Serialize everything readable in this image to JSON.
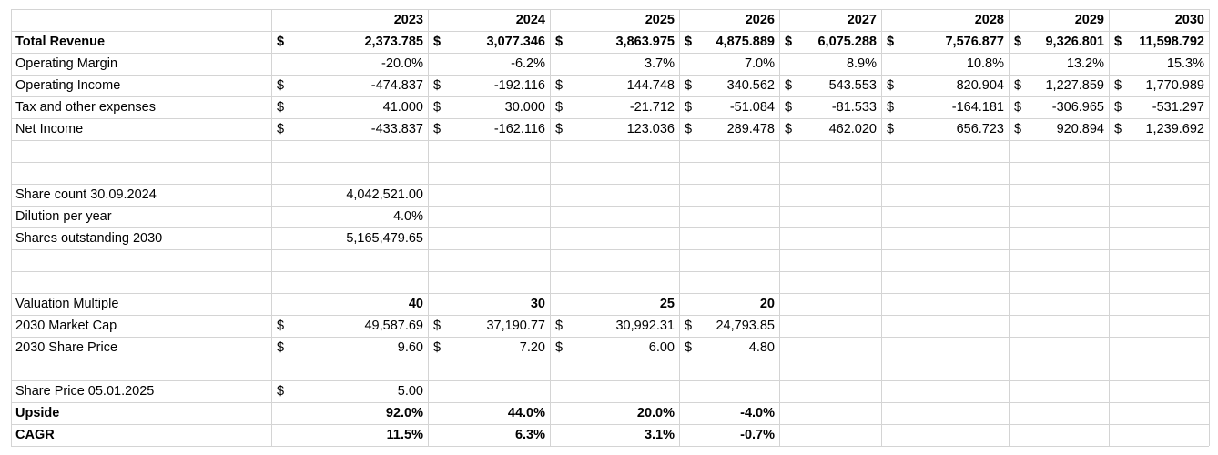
{
  "years": [
    "2023",
    "2024",
    "2025",
    "2026",
    "2027",
    "2028",
    "2029",
    "2030"
  ],
  "currency_symbol": "$",
  "rows": {
    "total_revenue": {
      "label": "Total Revenue",
      "bold": true,
      "dollar": true,
      "values": [
        "2,373.785",
        "3,077.346",
        "3,863.975",
        "4,875.889",
        "6,075.288",
        "7,576.877",
        "9,326.801",
        "11,598.792"
      ]
    },
    "operating_margin": {
      "label": "Operating Margin",
      "bold": false,
      "dollar": false,
      "values": [
        "-20.0%",
        "-6.2%",
        "3.7%",
        "7.0%",
        "8.9%",
        "10.8%",
        "13.2%",
        "15.3%"
      ]
    },
    "operating_income": {
      "label": "Operating Income",
      "bold": false,
      "dollar": true,
      "values": [
        "-474.837",
        "-192.116",
        "144.748",
        "340.562",
        "543.553",
        "820.904",
        "1,227.859",
        "1,770.989"
      ]
    },
    "tax_other": {
      "label": "Tax and other expenses",
      "bold": false,
      "dollar": true,
      "values": [
        "41.000",
        "30.000",
        "-21.712",
        "-51.084",
        "-81.533",
        "-164.181",
        "-306.965",
        "-531.297"
      ]
    },
    "net_income": {
      "label": "Net Income",
      "bold": false,
      "dollar": true,
      "values": [
        "-433.837",
        "-162.116",
        "123.036",
        "289.478",
        "462.020",
        "656.723",
        "920.894",
        "1,239.692"
      ]
    }
  },
  "shares": {
    "share_count_label": "Share count 30.09.2024",
    "share_count_value": "4,042,521.00",
    "dilution_label": "Dilution per year",
    "dilution_value": "4.0%",
    "outstanding_label": "Shares outstanding 2030",
    "outstanding_value": "5,165,479.65"
  },
  "valuation": {
    "multiple_label": "Valuation Multiple",
    "multiples": [
      "40",
      "30",
      "25",
      "20"
    ],
    "market_cap_label": "2030 Market Cap",
    "market_caps": [
      "49,587.69",
      "37,190.77",
      "30,992.31",
      "24,793.85"
    ],
    "share_price_label": "2030 Share Price",
    "share_prices": [
      "9.60",
      "7.20",
      "6.00",
      "4.80"
    ]
  },
  "current": {
    "share_price_label": "Share Price 05.01.2025",
    "share_price_value": "5.00",
    "upside_label": "Upside",
    "upside": [
      "92.0%",
      "44.0%",
      "20.0%",
      "-4.0%"
    ],
    "cagr_label": "CAGR",
    "cagr": [
      "11.5%",
      "6.3%",
      "3.1%",
      "-0.7%"
    ]
  }
}
